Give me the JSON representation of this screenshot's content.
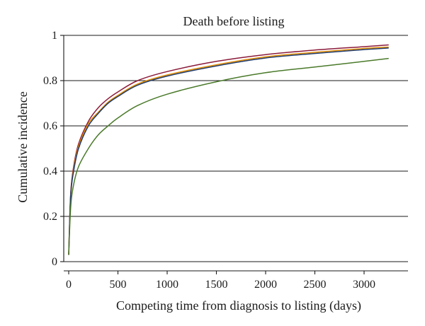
{
  "chart_data": {
    "type": "line",
    "title": "Death before listing",
    "xlabel": "Competing time from diagnosis to listing (days)",
    "ylabel": "Cumulative incidence",
    "xlim": [
      0,
      3300
    ],
    "ylim": [
      0,
      1
    ],
    "xticks": [
      0,
      500,
      1000,
      1500,
      2000,
      2500,
      3000
    ],
    "yticks": [
      0,
      0.2,
      0.4,
      0.6,
      0.8,
      1
    ],
    "xtick_labels": [
      "0",
      "500",
      "1000",
      "1500",
      "2000",
      "2500",
      "3000"
    ],
    "ytick_labels": [
      "0",
      "0.2",
      "0.4",
      "0.6",
      "0.8",
      "1"
    ],
    "grid": "horizontal",
    "series": [
      {
        "color": "#8b1a3a",
        "points": [
          [
            0,
            0.03
          ],
          [
            20,
            0.3
          ],
          [
            50,
            0.42
          ],
          [
            100,
            0.52
          ],
          [
            200,
            0.62
          ],
          [
            300,
            0.68
          ],
          [
            400,
            0.72
          ],
          [
            500,
            0.75
          ],
          [
            700,
            0.8
          ],
          [
            1000,
            0.84
          ],
          [
            1500,
            0.885
          ],
          [
            2000,
            0.915
          ],
          [
            2500,
            0.935
          ],
          [
            3000,
            0.95
          ],
          [
            3250,
            0.958
          ]
        ]
      },
      {
        "color": "#e08a00",
        "points": [
          [
            0,
            0.03
          ],
          [
            20,
            0.29
          ],
          [
            50,
            0.41
          ],
          [
            100,
            0.51
          ],
          [
            200,
            0.61
          ],
          [
            300,
            0.66
          ],
          [
            400,
            0.705
          ],
          [
            500,
            0.735
          ],
          [
            700,
            0.785
          ],
          [
            1000,
            0.825
          ],
          [
            1500,
            0.87
          ],
          [
            2000,
            0.905
          ],
          [
            2500,
            0.925
          ],
          [
            3000,
            0.942
          ],
          [
            3250,
            0.948
          ]
        ]
      },
      {
        "color": "#1f3b6b",
        "points": [
          [
            0,
            0.03
          ],
          [
            20,
            0.29
          ],
          [
            50,
            0.4
          ],
          [
            100,
            0.5
          ],
          [
            200,
            0.6
          ],
          [
            300,
            0.655
          ],
          [
            400,
            0.7
          ],
          [
            500,
            0.73
          ],
          [
            700,
            0.78
          ],
          [
            1000,
            0.82
          ],
          [
            1500,
            0.865
          ],
          [
            2000,
            0.9
          ],
          [
            2500,
            0.92
          ],
          [
            3000,
            0.937
          ],
          [
            3250,
            0.944
          ]
        ]
      },
      {
        "color": "#4a7a2a",
        "points": [
          [
            0,
            0.03
          ],
          [
            20,
            0.24
          ],
          [
            50,
            0.34
          ],
          [
            100,
            0.42
          ],
          [
            200,
            0.5
          ],
          [
            300,
            0.56
          ],
          [
            400,
            0.6
          ],
          [
            500,
            0.635
          ],
          [
            700,
            0.69
          ],
          [
            1000,
            0.74
          ],
          [
            1500,
            0.795
          ],
          [
            2000,
            0.835
          ],
          [
            2500,
            0.86
          ],
          [
            3000,
            0.885
          ],
          [
            3250,
            0.898
          ]
        ]
      }
    ]
  }
}
